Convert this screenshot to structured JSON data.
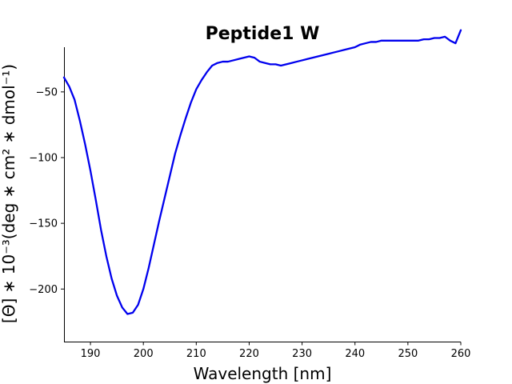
{
  "chart_data": {
    "type": "line",
    "title": "Peptide1 W",
    "xlabel": "Wavelength [nm]",
    "ylabel": "[Θ] ∗ 10⁻³(deg ∗ cm² ∗ dmol⁻¹)",
    "xlim": [
      185,
      260
    ],
    "ylim": [
      -240,
      -16
    ],
    "xticks": [
      190,
      200,
      210,
      220,
      230,
      240,
      250,
      260
    ],
    "xtick_labels": [
      "190",
      "200",
      "210",
      "220",
      "230",
      "240",
      "250",
      "260"
    ],
    "yticks": [
      -50,
      -100,
      -150,
      -200
    ],
    "ytick_labels": [
      "−50",
      "−100",
      "−150",
      "−200"
    ],
    "grid": false,
    "spines": [
      "left",
      "bottom"
    ],
    "series": [
      {
        "color": "#0000ee",
        "x": [
          185,
          186,
          187,
          188,
          189,
          190,
          191,
          192,
          193,
          194,
          195,
          196,
          197,
          198,
          199,
          200,
          201,
          202,
          203,
          204,
          205,
          206,
          207,
          208,
          209,
          210,
          211,
          212,
          213,
          214,
          215,
          216,
          217,
          218,
          219,
          220,
          221,
          222,
          223,
          224,
          225,
          226,
          227,
          228,
          229,
          230,
          231,
          232,
          233,
          234,
          235,
          236,
          237,
          238,
          239,
          240,
          241,
          242,
          243,
          244,
          245,
          246,
          247,
          248,
          249,
          250,
          251,
          252,
          253,
          254,
          255,
          256,
          257,
          258,
          259,
          260
        ],
        "y": [
          -39,
          -46,
          -56,
          -72,
          -90,
          -110,
          -132,
          -155,
          -175,
          -192,
          -205,
          -214,
          -219,
          -218,
          -212,
          -200,
          -184,
          -166,
          -148,
          -131,
          -114,
          -97,
          -83,
          -70,
          -58,
          -48,
          -41,
          -35,
          -30,
          -28,
          -27,
          -27,
          -26,
          -25,
          -24,
          -23,
          -24,
          -27,
          -28,
          -29,
          -29,
          -30,
          -29,
          -28,
          -27,
          -26,
          -25,
          -24,
          -23,
          -22,
          -21,
          -20,
          -19,
          -18,
          -17,
          -16,
          -14,
          -13,
          -12,
          -12,
          -11,
          -11,
          -11,
          -11,
          -11,
          -11,
          -11,
          -11,
          -10,
          -10,
          -9,
          -9,
          -8,
          -11,
          -13,
          -3
        ]
      }
    ]
  }
}
